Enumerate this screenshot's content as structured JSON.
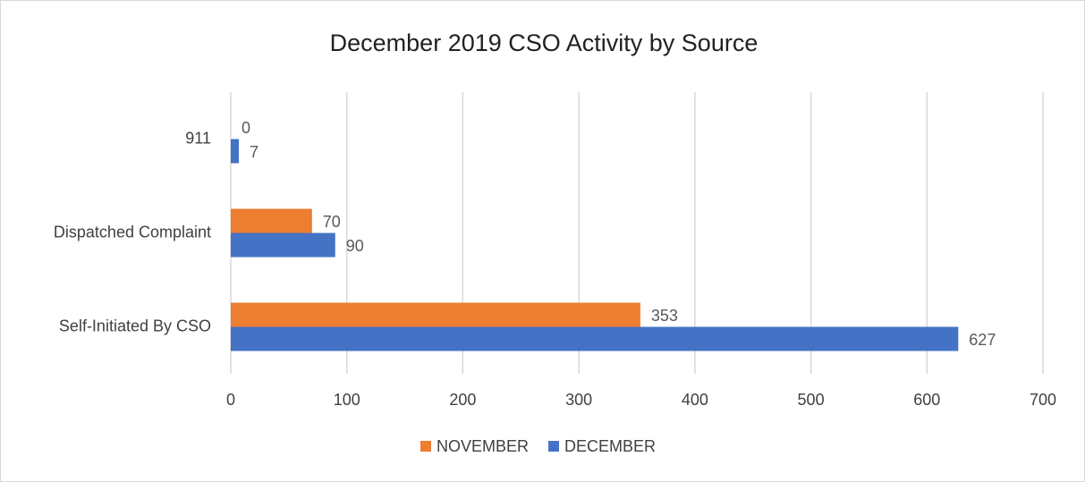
{
  "chart_data": {
    "type": "bar",
    "orientation": "horizontal",
    "title": "December 2019 CSO Activity by Source",
    "categories": [
      "911",
      "Dispatched Complaint",
      "Self-Initiated By CSO"
    ],
    "series": [
      {
        "name": "NOVEMBER",
        "color": "#ed7d31",
        "values": [
          0,
          70,
          353
        ]
      },
      {
        "name": "DECEMBER",
        "color": "#4472c4",
        "values": [
          7,
          90,
          627
        ]
      }
    ],
    "xlim": [
      0,
      700
    ],
    "xticks": [
      0,
      100,
      200,
      300,
      400,
      500,
      600,
      700
    ],
    "grid": true,
    "legend": "bottom"
  }
}
